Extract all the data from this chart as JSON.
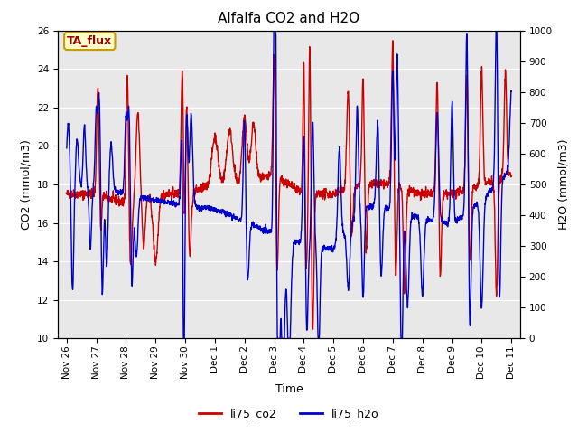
{
  "title": "Alfalfa CO2 and H2O",
  "xlabel": "Time",
  "ylabel_left": "CO2 (mmol/m3)",
  "ylabel_right": "H2O (mmol/m3)",
  "ylim_left": [
    10,
    26
  ],
  "ylim_right": [
    0,
    1000
  ],
  "yticks_left": [
    10,
    12,
    14,
    16,
    18,
    20,
    22,
    24,
    26
  ],
  "yticks_right": [
    0,
    100,
    200,
    300,
    400,
    500,
    600,
    700,
    800,
    900,
    1000
  ],
  "ytick_labels_right": [
    "0",
    "100",
    "200",
    "300",
    "400",
    "500",
    "600",
    "700",
    "800",
    "900",
    "1000"
  ],
  "legend_labels": [
    "li75_co2",
    "li75_h2o"
  ],
  "line_width": 1.0,
  "annotation_text": "TA_flux",
  "background_color": "#e8e8e8",
  "title_fontsize": 11,
  "axis_fontsize": 9,
  "tick_fontsize": 7.5,
  "legend_fontsize": 9,
  "xtick_positions": [
    0,
    1,
    2,
    3,
    4,
    5,
    6,
    7,
    8,
    9,
    10,
    11,
    12,
    13,
    14,
    15
  ],
  "xtick_labels": [
    "Nov 26",
    "Nov 27",
    "Nov 28",
    "Nov 29",
    "Nov 30",
    "Dec 1",
    "Dec 2",
    "Dec 3",
    "Dec 4",
    "Dec 5",
    "Dec 6",
    "Dec 7",
    "Dec 8",
    "Dec 9",
    "Dec 10",
    "Dec 11"
  ],
  "co2_color": "#cc0000",
  "h2o_color": "#0000cc"
}
